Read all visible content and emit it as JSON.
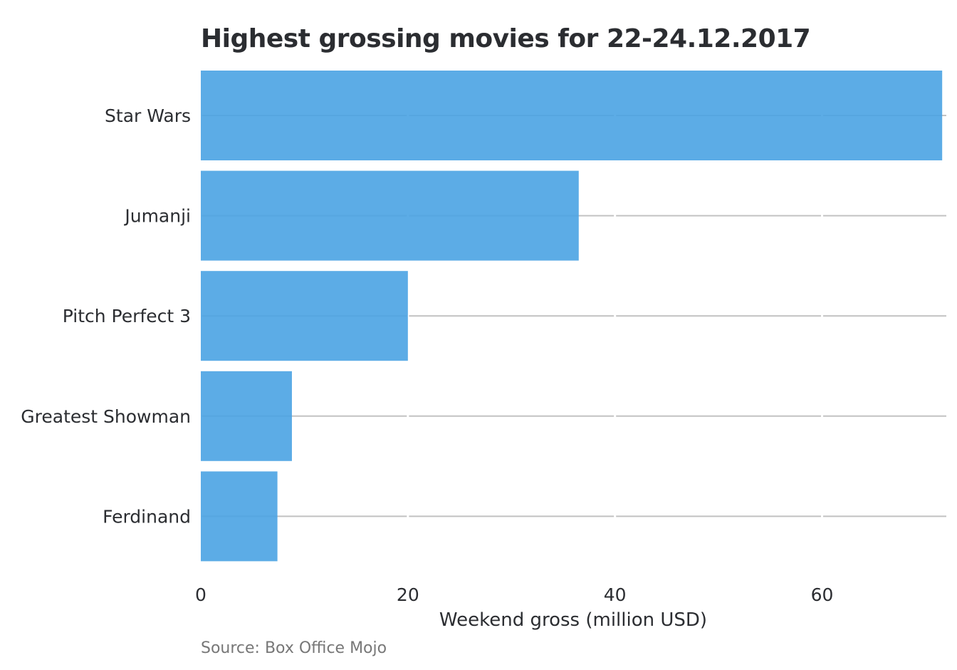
{
  "chart_data": {
    "type": "bar",
    "orientation": "horizontal",
    "title": "Highest grossing movies for 22-24.12.2017",
    "source": "Source: Box Office Mojo",
    "xlabel": "Weekend gross (million USD)",
    "ylabel": "",
    "categories": [
      "Star Wars",
      "Jumanji",
      "Pitch Perfect 3",
      "Greatest Showman",
      "Ferdinand"
    ],
    "values": [
      71.6,
      36.5,
      20.0,
      8.8,
      7.4
    ],
    "xlim": [
      0,
      72
    ],
    "xticks": [
      0,
      20,
      40,
      60
    ],
    "xtick_labels": [
      "0",
      "20",
      "40",
      "60"
    ],
    "grid": true,
    "legend": "none",
    "colors": {
      "bar": "#4aa3e3",
      "grid": "#c2c2c2",
      "text": "#2b2d31",
      "source": "#777777"
    }
  }
}
